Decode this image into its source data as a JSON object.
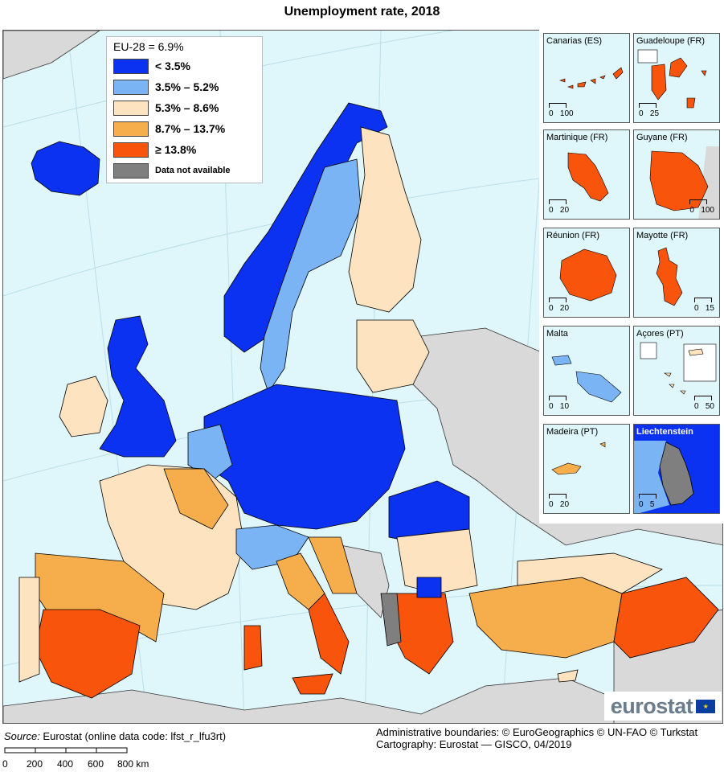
{
  "title": "Unemployment rate, 2018",
  "legend": {
    "header": "EU-28 = 6.9%",
    "classes": [
      {
        "label": "< 3.5%",
        "color": "#0a32f0"
      },
      {
        "label": "3.5%  –  5.2%",
        "color": "#7ab4f5"
      },
      {
        "label": "5.3%  –  8.6%",
        "color": "#fde3c0"
      },
      {
        "label": "8.7%  –  13.7%",
        "color": "#f6ad4c"
      },
      {
        "label": "≥ 13.8%",
        "color": "#f8540b"
      },
      {
        "label": "Data not available",
        "color": "#7f7f7f"
      }
    ]
  },
  "insets": [
    {
      "name": "Canarias (ES)",
      "scale_left": "0",
      "scale_right": "100"
    },
    {
      "name": "Guadeloupe (FR)",
      "scale_left": "0",
      "scale_right": "25"
    },
    {
      "name": "Martinique (FR)",
      "scale_left": "0",
      "scale_right": "20"
    },
    {
      "name": "Guyane (FR)",
      "scale_left": "0",
      "scale_right": "100"
    },
    {
      "name": "Réunion (FR)",
      "scale_left": "0",
      "scale_right": "20"
    },
    {
      "name": "Mayotte (FR)",
      "scale_left": "0",
      "scale_right": "15"
    },
    {
      "name": "Malta",
      "scale_left": "0",
      "scale_right": "10"
    },
    {
      "name": "Açores (PT)",
      "scale_left": "0",
      "scale_right": "50"
    },
    {
      "name": "Madeira (PT)",
      "scale_left": "0",
      "scale_right": "20"
    },
    {
      "name": "Liechtenstein",
      "scale_left": "0",
      "scale_right": "5"
    }
  ],
  "source": {
    "label": "Source:",
    "text": " Eurostat (online data code: lfst_r_lfu3rt)"
  },
  "credits": {
    "line1": "Administrative boundaries: © EuroGeographics © UN-FAO © Turkstat",
    "line2": "Cartography: Eurostat — GISCO, 04/2019"
  },
  "scale_bar": {
    "labels": [
      "0",
      "200",
      "400",
      "600",
      "800 km"
    ]
  },
  "brand": "eurostat",
  "colors": {
    "sea": "#dff6fb",
    "non_eu": "#d9d9d9",
    "border": "#000000"
  }
}
